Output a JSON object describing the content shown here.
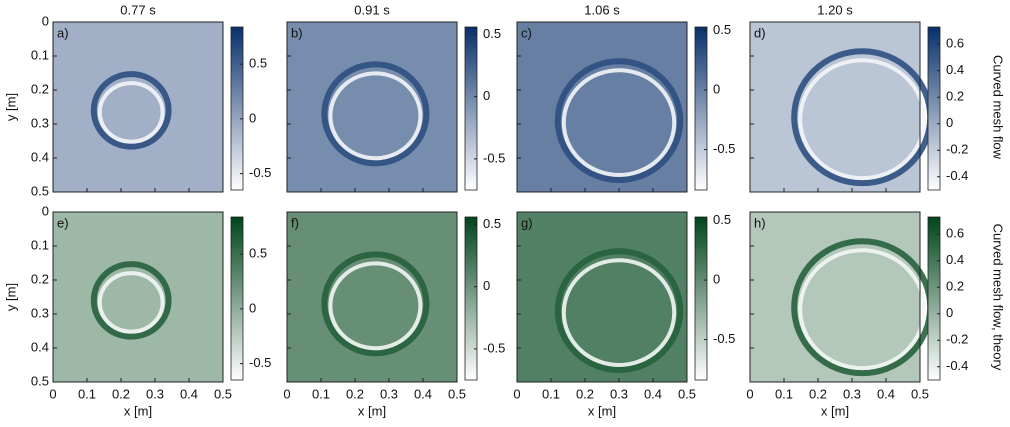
{
  "chart_data": [
    {
      "type": "heatmap",
      "title": "0.77 s",
      "panel_label": "a)",
      "ylabel": "y [m]",
      "xlim": [
        0,
        0.5
      ],
      "xticks": [
        0,
        0.1,
        0.2,
        0.3,
        0.4,
        0.5
      ],
      "ylim": [
        0.5,
        0
      ],
      "yticks": [
        0,
        0.1,
        0.2,
        0.3,
        0.4,
        0.5
      ],
      "clim": [
        -0.65,
        0.84
      ],
      "cticks": [
        -0.5,
        0,
        0.5
      ],
      "colormap": [
        "#ffffff",
        "#08306b"
      ]
    },
    {
      "type": "heatmap",
      "title": "0.91 s",
      "panel_label": "b)",
      "xlim": [
        0,
        0.5
      ],
      "xticks": [
        0,
        0.1,
        0.2,
        0.3,
        0.4,
        0.5
      ],
      "ylim": [
        0.5,
        0
      ],
      "yticks": [
        0,
        0.1,
        0.2,
        0.3,
        0.4,
        0.5
      ],
      "clim": [
        -0.75,
        0.56
      ],
      "cticks": [
        -0.5,
        0,
        0.5
      ],
      "colormap": [
        "#ffffff",
        "#08306b"
      ]
    },
    {
      "type": "heatmap",
      "title": "1.06 s",
      "panel_label": "c)",
      "xlim": [
        0,
        0.5
      ],
      "xticks": [
        0,
        0.1,
        0.2,
        0.3,
        0.4,
        0.5
      ],
      "ylim": [
        0.5,
        0
      ],
      "yticks": [
        0,
        0.1,
        0.2,
        0.3,
        0.4,
        0.5
      ],
      "clim": [
        -0.84,
        0.53
      ],
      "cticks": [
        -0.5,
        0,
        0.5
      ],
      "colormap": [
        "#ffffff",
        "#08306b"
      ]
    },
    {
      "type": "heatmap",
      "title": "1.20 s",
      "panel_label": "d)",
      "colorbar_label": "Curved mesh flow",
      "xlim": [
        0,
        0.5
      ],
      "xticks": [
        0,
        0.1,
        0.2,
        0.3,
        0.4,
        0.5
      ],
      "ylim": [
        0.5,
        0
      ],
      "yticks": [
        0,
        0.1,
        0.2,
        0.3,
        0.4,
        0.5
      ],
      "clim": [
        -0.5,
        0.73
      ],
      "cticks": [
        -0.4,
        -0.2,
        0,
        0.2,
        0.4,
        0.6
      ],
      "colormap": [
        "#ffffff",
        "#08306b"
      ]
    },
    {
      "type": "heatmap",
      "panel_label": "e)",
      "ylabel": "y [m]",
      "xlabel": "x [m]",
      "xlim": [
        0,
        0.5
      ],
      "xticks": [
        0,
        0.1,
        0.2,
        0.3,
        0.4,
        0.5
      ],
      "ylim": [
        0.5,
        0
      ],
      "yticks": [
        0,
        0.1,
        0.2,
        0.3,
        0.4,
        0.5
      ],
      "clim": [
        -0.65,
        0.84
      ],
      "cticks": [
        -0.5,
        0,
        0.5
      ],
      "colormap": [
        "#ffffff",
        "#00441b"
      ]
    },
    {
      "type": "heatmap",
      "panel_label": "f)",
      "xlabel": "x [m]",
      "xlim": [
        0,
        0.5
      ],
      "xticks": [
        0,
        0.1,
        0.2,
        0.3,
        0.4,
        0.5
      ],
      "ylim": [
        0.5,
        0
      ],
      "yticks": [
        0,
        0.1,
        0.2,
        0.3,
        0.4,
        0.5
      ],
      "clim": [
        -0.75,
        0.56
      ],
      "cticks": [
        -0.5,
        0,
        0.5
      ],
      "colormap": [
        "#ffffff",
        "#00441b"
      ]
    },
    {
      "type": "heatmap",
      "panel_label": "g)",
      "xlabel": "x [m]",
      "xlim": [
        0,
        0.5
      ],
      "xticks": [
        0,
        0.1,
        0.2,
        0.3,
        0.4,
        0.5
      ],
      "ylim": [
        0.5,
        0
      ],
      "yticks": [
        0,
        0.1,
        0.2,
        0.3,
        0.4,
        0.5
      ],
      "clim": [
        -0.84,
        0.53
      ],
      "cticks": [
        -0.5,
        0,
        0.5
      ],
      "colormap": [
        "#ffffff",
        "#00441b"
      ]
    },
    {
      "type": "heatmap",
      "panel_label": "h)",
      "xlabel": "x [m]",
      "colorbar_label": "Curved mesh flow, theory",
      "xlim": [
        0,
        0.5
      ],
      "xticks": [
        0,
        0.1,
        0.2,
        0.3,
        0.4,
        0.5
      ],
      "ylim": [
        0.5,
        0
      ],
      "yticks": [
        0,
        0.1,
        0.2,
        0.3,
        0.4,
        0.5
      ],
      "clim": [
        -0.5,
        0.73
      ],
      "cticks": [
        -0.4,
        -0.2,
        0,
        0.2,
        0.4,
        0.6
      ],
      "colormap": [
        "#ffffff",
        "#00441b"
      ]
    }
  ]
}
